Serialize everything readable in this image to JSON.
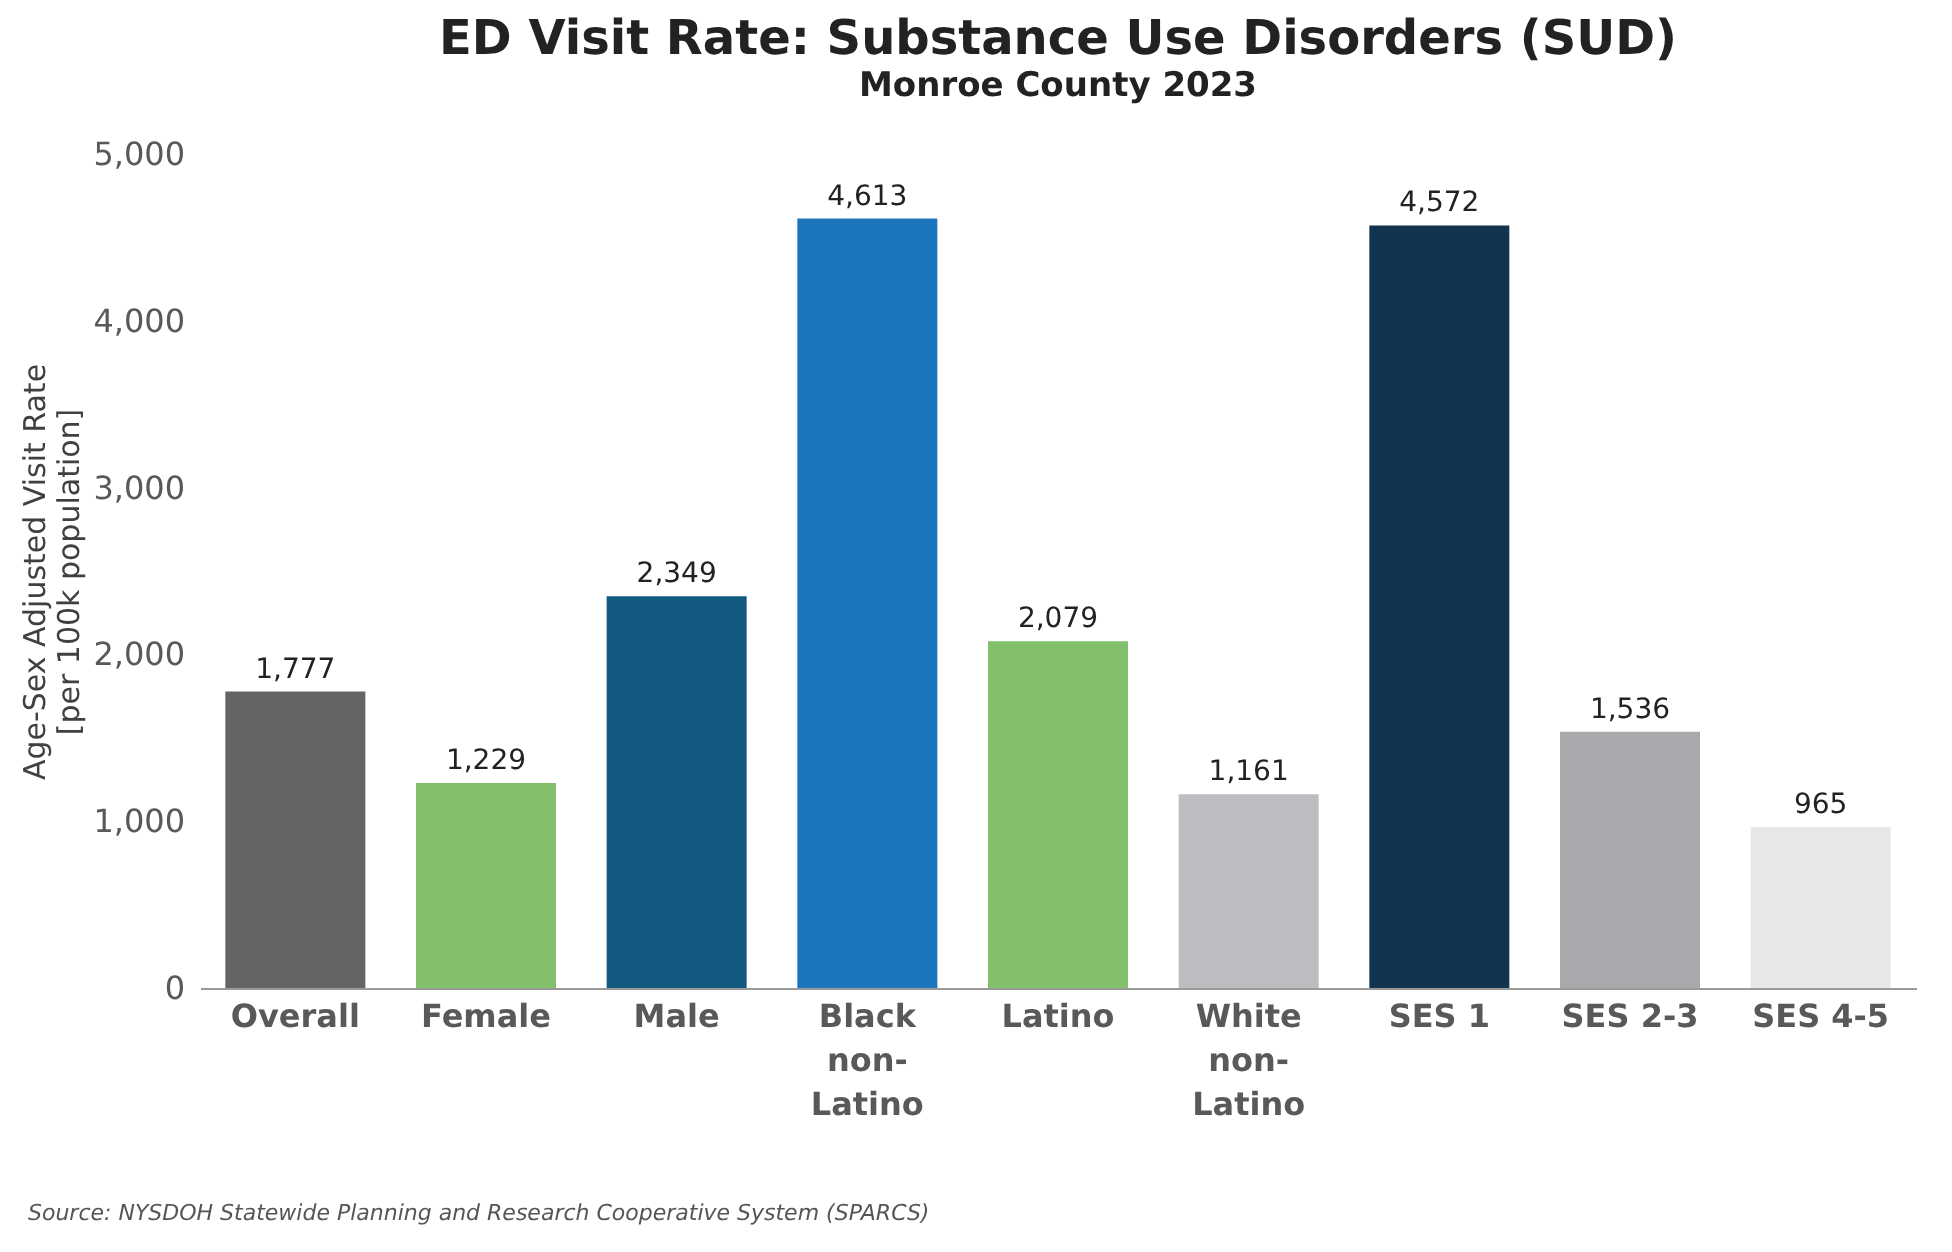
{
  "chart_data": {
    "type": "bar",
    "title": "ED Visit Rate: Substance Use Disorders (SUD)",
    "subtitle": "Monroe County 2023",
    "ylabel": "Age-Sex Adjusted Visit Rate\n[per 100k population]",
    "categories": [
      "Overall",
      "Female",
      "Male",
      "Black non-Latino",
      "Latino",
      "White non-Latino",
      "SES 1",
      "SES 2-3",
      "SES 4-5"
    ],
    "values": [
      1777,
      1229,
      2349,
      4613,
      2079,
      1161,
      4572,
      1536,
      965
    ],
    "value_labels": [
      "1,777",
      "1,229",
      "2,349",
      "4,613",
      "2,079",
      "1,161",
      "4,572",
      "1,536",
      "965"
    ],
    "colors": [
      "#636466",
      "#82c06b",
      "#135a80",
      "#1c75bc",
      "#82c06b",
      "#bcbdc0",
      "#12344f",
      "#a7a9ac",
      "#e6e7e8"
    ],
    "ylim": [
      0,
      5000
    ],
    "yticks": [
      0,
      {
        "value": 1000,
        "label": "1,000"
      },
      {
        "value": 2000,
        "label": "2,000"
      },
      {
        "value": 3000,
        "label": "3,000"
      },
      {
        "value": 4000,
        "label": "4,000"
      },
      {
        "value": 5000,
        "label": "5,000"
      }
    ],
    "annotations": [
      "Source: NYSDOH Statewide Planning and Research Cooperative System (SPARCS)"
    ]
  }
}
